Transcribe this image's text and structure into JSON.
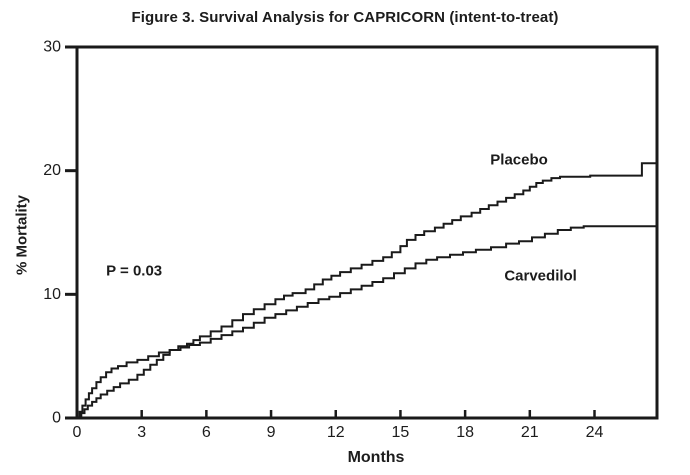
{
  "figure": {
    "title": "Figure 3. Survival Analysis for CAPRICORN (intent-to-treat)"
  },
  "chart_data": {
    "type": "line",
    "subtype": "kaplan-meier-step",
    "title": "Figure 3. Survival Analysis for CAPRICORN (intent-to-treat)",
    "xlabel": "Months",
    "ylabel": "% Mortality",
    "xlim": [
      0,
      26.9
    ],
    "ylim": [
      0,
      30
    ],
    "x_ticks": [
      0,
      3,
      6,
      9,
      12,
      15,
      18,
      21,
      24
    ],
    "y_ticks": [
      0,
      10,
      20,
      30
    ],
    "grid": false,
    "line_color": "#1a1a1a",
    "background_color": "#ffffff",
    "legend_position": "inline-labels",
    "annotations": [
      {
        "name": "p-value",
        "text": "P = 0.03",
        "x": 2.65,
        "y": 11.9
      }
    ],
    "series": [
      {
        "name": "Placebo",
        "label_pos": {
          "x": 20.5,
          "y": 20.9
        },
        "end_value": 20.6,
        "points": [
          [
            0,
            0
          ],
          [
            0.2,
            0.4
          ],
          [
            0.35,
            0.7
          ],
          [
            0.5,
            1.0
          ],
          [
            0.7,
            1.3
          ],
          [
            0.9,
            1.6
          ],
          [
            1.1,
            1.9
          ],
          [
            1.4,
            2.2
          ],
          [
            1.7,
            2.5
          ],
          [
            2.0,
            2.8
          ],
          [
            2.4,
            3.1
          ],
          [
            2.8,
            3.5
          ],
          [
            3.1,
            3.9
          ],
          [
            3.4,
            4.3
          ],
          [
            3.7,
            4.7
          ],
          [
            4.0,
            5.1
          ],
          [
            4.3,
            5.5
          ],
          [
            4.7,
            5.8
          ],
          [
            5.1,
            6.0
          ],
          [
            5.4,
            6.3
          ],
          [
            5.7,
            6.6
          ],
          [
            6.2,
            7.0
          ],
          [
            6.7,
            7.4
          ],
          [
            7.2,
            7.9
          ],
          [
            7.7,
            8.4
          ],
          [
            8.2,
            8.8
          ],
          [
            8.7,
            9.2
          ],
          [
            9.2,
            9.6
          ],
          [
            9.6,
            9.9
          ],
          [
            10.0,
            10.1
          ],
          [
            10.6,
            10.4
          ],
          [
            11.0,
            10.8
          ],
          [
            11.4,
            11.2
          ],
          [
            11.8,
            11.5
          ],
          [
            12.2,
            11.8
          ],
          [
            12.7,
            12.1
          ],
          [
            13.2,
            12.4
          ],
          [
            13.7,
            12.7
          ],
          [
            14.2,
            13.0
          ],
          [
            14.6,
            13.4
          ],
          [
            15.0,
            13.9
          ],
          [
            15.3,
            14.4
          ],
          [
            15.7,
            14.8
          ],
          [
            16.1,
            15.1
          ],
          [
            16.6,
            15.4
          ],
          [
            17.0,
            15.7
          ],
          [
            17.4,
            16.0
          ],
          [
            17.8,
            16.3
          ],
          [
            18.3,
            16.6
          ],
          [
            18.7,
            16.9
          ],
          [
            19.1,
            17.2
          ],
          [
            19.5,
            17.5
          ],
          [
            19.9,
            17.8
          ],
          [
            20.3,
            18.1
          ],
          [
            20.7,
            18.4
          ],
          [
            21.0,
            18.7
          ],
          [
            21.3,
            19.0
          ],
          [
            21.6,
            19.2
          ],
          [
            22.0,
            19.4
          ],
          [
            22.4,
            19.5
          ],
          [
            23.8,
            19.6
          ],
          [
            26.2,
            20.6
          ]
        ]
      },
      {
        "name": "Carvedilol",
        "label_pos": {
          "x": 21.5,
          "y": 11.5
        },
        "end_value": 15.5,
        "points": [
          [
            0,
            0
          ],
          [
            0.12,
            0.5
          ],
          [
            0.25,
            1.0
          ],
          [
            0.4,
            1.5
          ],
          [
            0.55,
            2.0
          ],
          [
            0.7,
            2.4
          ],
          [
            0.9,
            2.9
          ],
          [
            1.1,
            3.3
          ],
          [
            1.35,
            3.7
          ],
          [
            1.6,
            4.0
          ],
          [
            1.9,
            4.2
          ],
          [
            2.3,
            4.5
          ],
          [
            2.8,
            4.7
          ],
          [
            3.3,
            5.0
          ],
          [
            3.8,
            5.3
          ],
          [
            4.3,
            5.5
          ],
          [
            4.8,
            5.7
          ],
          [
            5.2,
            5.9
          ],
          [
            5.7,
            6.1
          ],
          [
            6.2,
            6.4
          ],
          [
            6.7,
            6.7
          ],
          [
            7.2,
            7.0
          ],
          [
            7.7,
            7.3
          ],
          [
            8.2,
            7.7
          ],
          [
            8.7,
            8.1
          ],
          [
            9.2,
            8.4
          ],
          [
            9.7,
            8.7
          ],
          [
            10.2,
            9.0
          ],
          [
            10.7,
            9.3
          ],
          [
            11.2,
            9.6
          ],
          [
            11.7,
            9.8
          ],
          [
            12.2,
            10.1
          ],
          [
            12.7,
            10.4
          ],
          [
            13.2,
            10.7
          ],
          [
            13.7,
            11.0
          ],
          [
            14.2,
            11.3
          ],
          [
            14.7,
            11.7
          ],
          [
            15.2,
            12.1
          ],
          [
            15.7,
            12.5
          ],
          [
            16.2,
            12.8
          ],
          [
            16.7,
            13.0
          ],
          [
            17.3,
            13.2
          ],
          [
            17.9,
            13.4
          ],
          [
            18.5,
            13.6
          ],
          [
            19.2,
            13.8
          ],
          [
            19.9,
            14.1
          ],
          [
            20.5,
            14.3
          ],
          [
            21.1,
            14.6
          ],
          [
            21.7,
            14.9
          ],
          [
            22.3,
            15.2
          ],
          [
            22.9,
            15.4
          ],
          [
            23.5,
            15.5
          ]
        ]
      }
    ]
  }
}
